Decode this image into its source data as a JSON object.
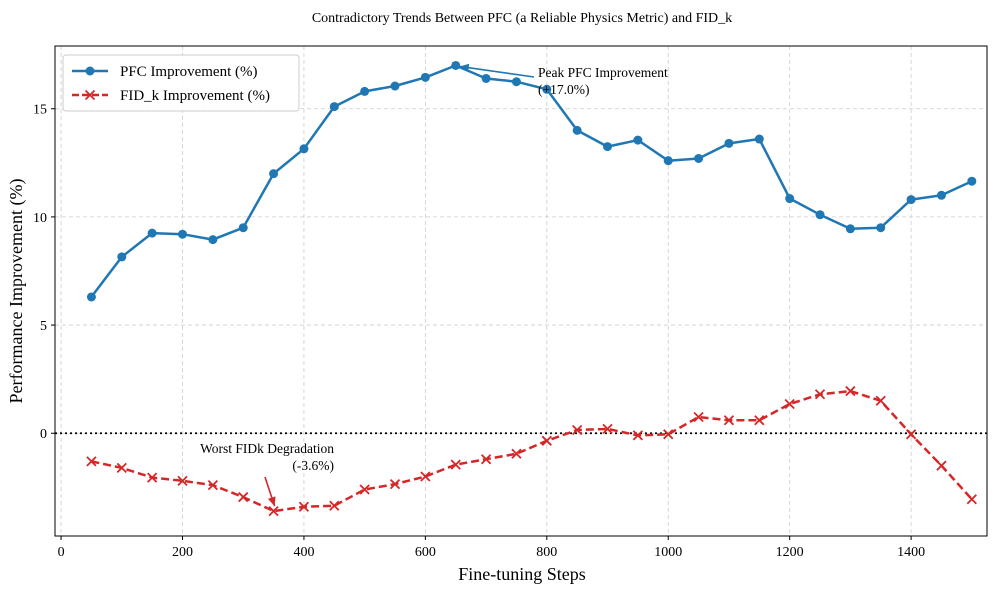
{
  "chart_data": {
    "type": "line",
    "title": "Contradictory Trends Between PFC (a Reliable Physics Metric) and FID_k",
    "xlabel": "Fine-tuning Steps",
    "ylabel": "Performance Improvement (%)",
    "xlim": [
      -10,
      1525
    ],
    "ylim": [
      -4.75,
      17.9
    ],
    "xticks": [
      0,
      200,
      400,
      600,
      800,
      1000,
      1200,
      1400
    ],
    "yticks": [
      0,
      5,
      10,
      15
    ],
    "grid": true,
    "legend_position": "top-left",
    "reference_line": {
      "y": 0,
      "style": "dotted",
      "color": "#000000"
    },
    "x": [
      50,
      100,
      150,
      200,
      250,
      300,
      350,
      400,
      450,
      500,
      550,
      600,
      650,
      700,
      750,
      800,
      850,
      900,
      950,
      1000,
      1050,
      1100,
      1150,
      1200,
      1250,
      1300,
      1350,
      1400,
      1450,
      1500
    ],
    "series": [
      {
        "name": "PFC Improvement (%)",
        "color": "#1f77b4",
        "marker": "circle",
        "linestyle": "solid",
        "values": [
          6.3,
          8.15,
          9.25,
          9.2,
          8.95,
          9.5,
          12.0,
          13.15,
          15.1,
          15.8,
          16.05,
          16.45,
          17.0,
          16.4,
          16.25,
          15.9,
          14.0,
          13.25,
          13.55,
          12.6,
          12.7,
          13.4,
          13.6,
          10.85,
          10.1,
          9.45,
          9.5,
          10.8,
          11.0,
          11.65
        ]
      },
      {
        "name": "FID_k Improvement (%)",
        "color": "#d62728",
        "marker": "x",
        "linestyle": "dashed",
        "values": [
          -1.3,
          -1.6,
          -2.05,
          -2.2,
          -2.4,
          -2.95,
          -3.6,
          -3.4,
          -3.35,
          -2.6,
          -2.35,
          -2.0,
          -1.45,
          -1.2,
          -0.95,
          -0.35,
          0.15,
          0.2,
          -0.1,
          -0.05,
          0.75,
          0.6,
          0.6,
          1.35,
          1.8,
          1.95,
          1.5,
          -0.05,
          -1.5,
          -3.05
        ]
      }
    ],
    "annotations": [
      {
        "line1": "Peak PFC Improvement",
        "line2": "(+17.0%)",
        "x": 650,
        "y": 17.0,
        "color": "#1f77b4"
      },
      {
        "line1": "Worst FIDk Degradation",
        "line2": "(-3.6%)",
        "x": 350,
        "y": -3.6,
        "color": "#d62728"
      }
    ]
  }
}
